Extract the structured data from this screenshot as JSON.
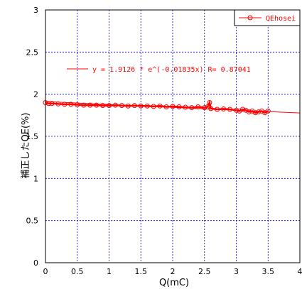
{
  "colors": {
    "series": "#ff0000",
    "grid": "#0000cc",
    "frame": "#000000"
  },
  "chart_data": {
    "type": "scatter",
    "title": "",
    "xlabel": "Q(mC)",
    "ylabel": "補正したQE(%)",
    "xlim": [
      0,
      4
    ],
    "ylim": [
      0,
      3
    ],
    "x_ticks": [
      "0",
      "0.5",
      "1",
      "1.5",
      "2",
      "2.5",
      "3",
      "3.5",
      "4"
    ],
    "y_ticks": [
      "0",
      "0.5",
      "1",
      "1.5",
      "2",
      "2.5",
      "3"
    ],
    "grid": true,
    "legend_position": "top-right",
    "series": [
      {
        "name": "QEhosei",
        "marker": "open-circle",
        "color": "#ff0000",
        "x": [
          0.0,
          0.05,
          0.1,
          0.2,
          0.3,
          0.4,
          0.5,
          0.6,
          0.7,
          0.8,
          0.9,
          1.0,
          1.1,
          1.2,
          1.3,
          1.4,
          1.5,
          1.6,
          1.7,
          1.8,
          1.9,
          2.0,
          2.1,
          2.2,
          2.3,
          2.4,
          2.5,
          2.55,
          2.58,
          2.6,
          2.7,
          2.8,
          2.9,
          3.0,
          3.05,
          3.1,
          3.15,
          3.2,
          3.25,
          3.3,
          3.35,
          3.4,
          3.45,
          3.5
        ],
        "y": [
          1.9,
          1.89,
          1.89,
          1.885,
          1.88,
          1.88,
          1.875,
          1.87,
          1.87,
          1.87,
          1.865,
          1.865,
          1.87,
          1.865,
          1.86,
          1.865,
          1.86,
          1.86,
          1.855,
          1.86,
          1.85,
          1.855,
          1.85,
          1.845,
          1.84,
          1.85,
          1.84,
          1.85,
          1.9,
          1.83,
          1.82,
          1.825,
          1.82,
          1.81,
          1.8,
          1.82,
          1.81,
          1.79,
          1.8,
          1.78,
          1.79,
          1.8,
          1.78,
          1.8
        ]
      }
    ],
    "fit": {
      "equation": "y = 1.9126 * e^(-0.01835x)   R= 0.87041",
      "a": 1.9126,
      "b": -0.01835,
      "r": 0.87041
    }
  }
}
